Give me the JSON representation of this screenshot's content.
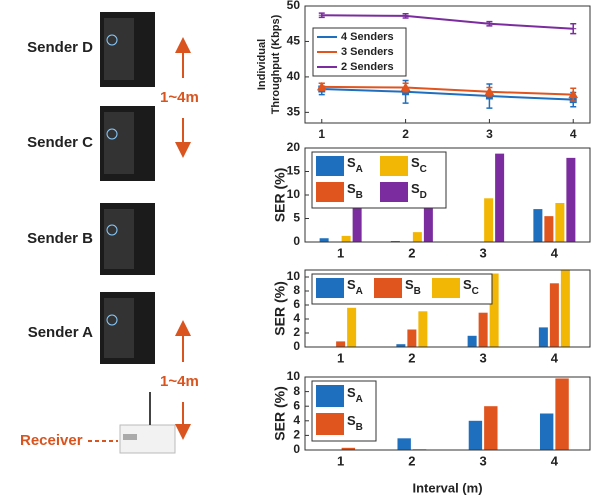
{
  "diagram": {
    "senders": [
      "Sender D",
      "Sender C",
      "Sender B",
      "Sender A"
    ],
    "receiver": "Receiver",
    "spacing_labels": [
      "1~4m",
      "1~4m"
    ]
  },
  "chart_data": [
    {
      "type": "line",
      "ylabel": [
        "Individual",
        "Throughput (Kbps)"
      ],
      "x": [
        1,
        2,
        3,
        4
      ],
      "xlim": [
        0.8,
        4.2
      ],
      "xticks": [
        1,
        2,
        3,
        4
      ],
      "ylim": [
        33.5,
        50
      ],
      "yticks": [
        35,
        40,
        45,
        50
      ],
      "legend": "upper left",
      "series": [
        {
          "name": "4 Senders",
          "color": "#1f6fbf",
          "values": [
            38.3,
            37.9,
            37.3,
            36.8
          ],
          "errors": [
            0.8,
            1.6,
            1.7,
            1.0
          ]
        },
        {
          "name": "3 Senders",
          "color": "#e0541e",
          "values": [
            38.6,
            38.5,
            37.9,
            37.5
          ],
          "errors": [
            0.5,
            0.6,
            0.6,
            0.9
          ]
        },
        {
          "name": "2 Senders",
          "color": "#7b2c9e",
          "values": [
            48.7,
            48.6,
            47.5,
            46.8
          ],
          "errors": [
            0.3,
            0.3,
            0.3,
            0.7
          ]
        }
      ]
    },
    {
      "type": "bar",
      "ylabel": "SER (%)",
      "categories": [
        "1",
        "2",
        "3",
        "4"
      ],
      "ylim": [
        0,
        20
      ],
      "yticks": [
        0,
        5,
        10,
        15,
        20
      ],
      "legend": "upper left",
      "series": [
        {
          "name": "SA",
          "color": "#1f6fbf",
          "values": [
            0.8,
            0.2,
            0,
            7.0
          ]
        },
        {
          "name": "SB",
          "color": "#e0541e",
          "values": [
            0,
            0,
            0,
            5.5
          ]
        },
        {
          "name": "SC",
          "color": "#f2b705",
          "values": [
            1.3,
            2.1,
            9.3,
            8.3
          ]
        },
        {
          "name": "SD",
          "color": "#7b2c9e",
          "values": [
            8.0,
            13.7,
            18.8,
            17.9
          ]
        }
      ]
    },
    {
      "type": "bar",
      "ylabel": "SER (%)",
      "categories": [
        "1",
        "2",
        "3",
        "4"
      ],
      "ylim": [
        0,
        11
      ],
      "yticks": [
        0,
        2,
        4,
        6,
        8,
        10
      ],
      "legend": "upper left",
      "series": [
        {
          "name": "SA",
          "color": "#1f6fbf",
          "values": [
            0,
            0.4,
            1.6,
            2.8
          ]
        },
        {
          "name": "SB",
          "color": "#e0541e",
          "values": [
            0.8,
            2.5,
            4.9,
            9.1
          ]
        },
        {
          "name": "SC",
          "color": "#f2b705",
          "values": [
            5.6,
            5.1,
            10.5,
            11.2
          ]
        }
      ]
    },
    {
      "type": "bar",
      "ylabel": "SER (%)",
      "xlabel": "Interval (m)",
      "categories": [
        "1",
        "2",
        "3",
        "4"
      ],
      "ylim": [
        0,
        10
      ],
      "yticks": [
        0,
        2,
        4,
        6,
        8,
        10
      ],
      "legend": "upper left",
      "series": [
        {
          "name": "SA",
          "color": "#1f6fbf",
          "values": [
            0,
            1.6,
            4.0,
            5.0
          ]
        },
        {
          "name": "SB",
          "color": "#e0541e",
          "values": [
            0.3,
            0.1,
            6.0,
            9.8
          ]
        }
      ]
    }
  ]
}
